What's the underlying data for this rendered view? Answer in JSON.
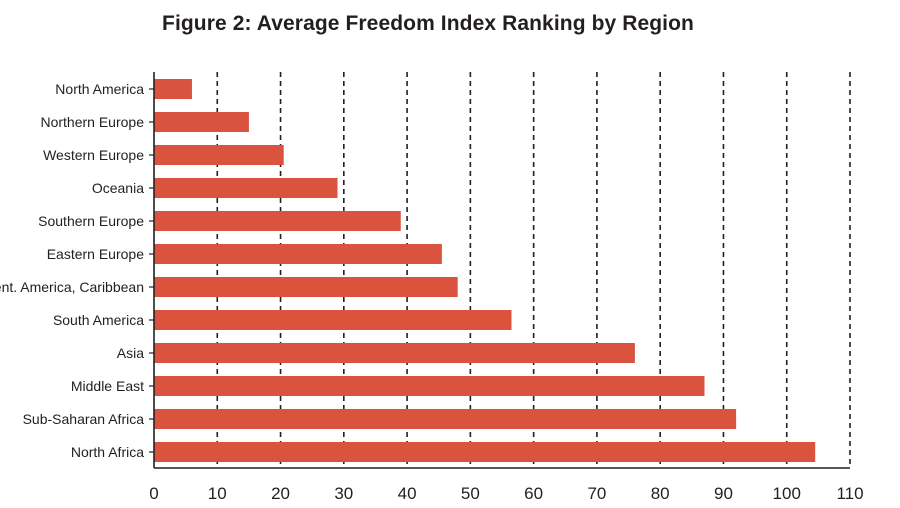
{
  "chart_data": {
    "type": "bar",
    "orientation": "horizontal",
    "title": "Figure 2: Average Freedom Index Ranking by Region",
    "xlabel": "",
    "ylabel": "",
    "categories": [
      "North America",
      "Northern Europe",
      "Western Europe",
      "Oceania",
      "Southern Europe",
      "Eastern Europe",
      "Cent. America, Caribbean",
      "South America",
      "Asia",
      "Middle East",
      "Sub-Saharan Africa",
      "North Africa"
    ],
    "values": [
      6,
      15,
      20.5,
      29,
      39,
      45.5,
      48,
      56.5,
      76,
      87,
      92,
      104.5
    ],
    "xlim": [
      0,
      110
    ],
    "xticks": [
      0,
      10,
      20,
      30,
      40,
      50,
      60,
      70,
      80,
      90,
      100,
      110
    ],
    "grid": "vertical dashed",
    "bar_color": "#d9533f",
    "legend": "none"
  }
}
